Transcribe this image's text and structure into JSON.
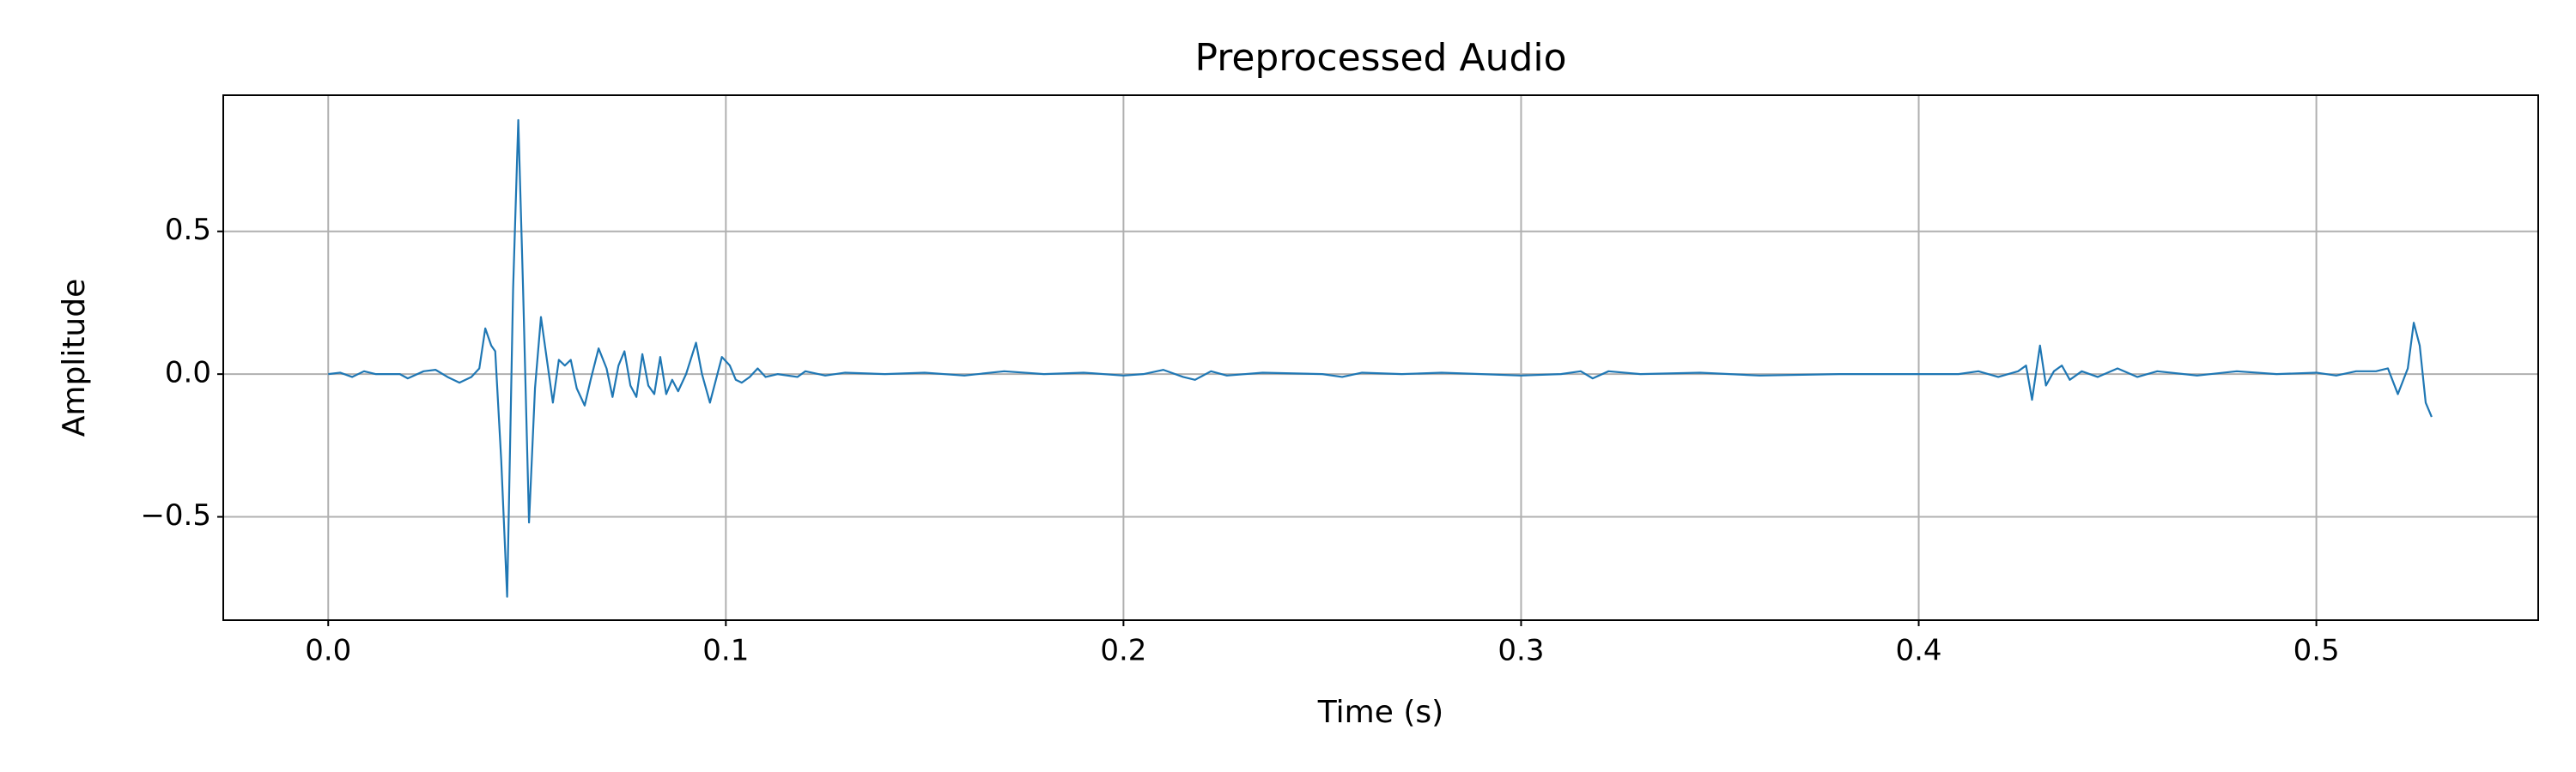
{
  "chart_data": {
    "type": "line",
    "title": "Preprocessed Audio",
    "x_label": "Time (s)",
    "y_label": "Amplitude",
    "grid": true,
    "xlim": [
      -0.0264,
      0.5558
    ],
    "ylim": [
      -0.862,
      0.977
    ],
    "xticks": [
      {
        "value": 0,
        "label": "0.0"
      },
      0.1,
      0.2,
      0.3,
      0.4,
      0.5
    ],
    "yticks": [
      {
        "value": -0.5,
        "label": "−0.5"
      },
      {
        "value": 0,
        "label": "0.0"
      },
      0.5
    ],
    "x": [
      0.0,
      0.003,
      0.006,
      0.009,
      0.012,
      0.018,
      0.02,
      0.024,
      0.027,
      0.03,
      0.033,
      0.036,
      0.038,
      0.0395,
      0.041,
      0.042,
      0.0435,
      0.045,
      0.0465,
      0.0478,
      0.049,
      0.0505,
      0.052,
      0.0535,
      0.055,
      0.0565,
      0.058,
      0.0595,
      0.061,
      0.0625,
      0.0645,
      0.066,
      0.068,
      0.07,
      0.0715,
      0.073,
      0.0745,
      0.076,
      0.0775,
      0.079,
      0.0805,
      0.082,
      0.0835,
      0.085,
      0.0865,
      0.088,
      0.09,
      0.0925,
      0.094,
      0.096,
      0.0975,
      0.099,
      0.101,
      0.1025,
      0.104,
      0.106,
      0.108,
      0.11,
      0.113,
      0.118,
      0.12,
      0.125,
      0.13,
      0.14,
      0.15,
      0.16,
      0.17,
      0.18,
      0.19,
      0.2,
      0.205,
      0.21,
      0.215,
      0.218,
      0.222,
      0.226,
      0.235,
      0.25,
      0.255,
      0.26,
      0.27,
      0.28,
      0.29,
      0.3,
      0.31,
      0.315,
      0.318,
      0.322,
      0.33,
      0.345,
      0.36,
      0.38,
      0.4,
      0.41,
      0.415,
      0.42,
      0.425,
      0.427,
      0.4285,
      0.4305,
      0.432,
      0.434,
      0.436,
      0.438,
      0.441,
      0.445,
      0.45,
      0.455,
      0.46,
      0.47,
      0.48,
      0.49,
      0.5,
      0.505,
      0.51,
      0.515,
      0.518,
      0.5205,
      0.523,
      0.5245,
      0.526,
      0.5275,
      0.529
    ],
    "series": [
      {
        "name": "Preprocessed Audio",
        "color": "#1f77b4",
        "values": [
          0,
          0.005,
          -0.01,
          0.01,
          0,
          0,
          -0.015,
          0.01,
          0.015,
          -0.01,
          -0.03,
          -0.01,
          0.02,
          0.16,
          0.1,
          0.08,
          -0.3,
          -0.78,
          0.3,
          0.89,
          0.3,
          -0.52,
          -0.05,
          0.2,
          0.05,
          -0.1,
          0.05,
          0.03,
          0.05,
          -0.05,
          -0.11,
          -0.02,
          0.09,
          0.02,
          -0.08,
          0.03,
          0.08,
          -0.04,
          -0.08,
          0.07,
          -0.04,
          -0.07,
          0.06,
          -0.07,
          -0.02,
          -0.06,
          0,
          0.11,
          0,
          -0.1,
          -0.02,
          0.06,
          0.03,
          -0.02,
          -0.03,
          -0.01,
          0.02,
          -0.01,
          0,
          -0.01,
          0.01,
          -0.005,
          0.005,
          0,
          0.005,
          -0.005,
          0.01,
          0,
          0.005,
          -0.005,
          0,
          0.015,
          -0.01,
          -0.02,
          0.01,
          -0.005,
          0.005,
          0,
          -0.01,
          0.005,
          0,
          0.005,
          0,
          -0.005,
          0,
          0.01,
          -0.015,
          0.01,
          0,
          0.005,
          -0.005,
          0,
          0,
          0,
          0.01,
          -0.01,
          0.01,
          0.03,
          -0.09,
          0.1,
          -0.04,
          0.01,
          0.03,
          -0.02,
          0.01,
          -0.01,
          0.02,
          -0.01,
          0.01,
          -0.005,
          0.01,
          0,
          0.005,
          -0.005,
          0.01,
          0.01,
          0.02,
          -0.07,
          0.02,
          0.18,
          0.1,
          -0.1,
          -0.15
        ]
      }
    ]
  }
}
